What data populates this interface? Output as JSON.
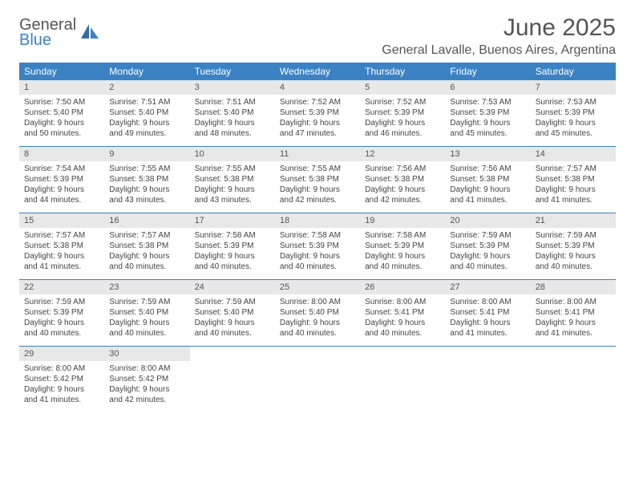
{
  "logo": {
    "line1": "General",
    "line2": "Blue"
  },
  "title": "June 2025",
  "location": "General Lavalle, Buenos Aires, Argentina",
  "colors": {
    "header_bg": "#3b82c4",
    "header_text": "#ffffff",
    "daynum_bg": "#e8e8e8",
    "text": "#444444",
    "rule": "#3b82c4"
  },
  "day_headers": [
    "Sunday",
    "Monday",
    "Tuesday",
    "Wednesday",
    "Thursday",
    "Friday",
    "Saturday"
  ],
  "weeks": [
    [
      {
        "n": "1",
        "sunrise": "Sunrise: 7:50 AM",
        "sunset": "Sunset: 5:40 PM",
        "daylight": "Daylight: 9 hours and 50 minutes."
      },
      {
        "n": "2",
        "sunrise": "Sunrise: 7:51 AM",
        "sunset": "Sunset: 5:40 PM",
        "daylight": "Daylight: 9 hours and 49 minutes."
      },
      {
        "n": "3",
        "sunrise": "Sunrise: 7:51 AM",
        "sunset": "Sunset: 5:40 PM",
        "daylight": "Daylight: 9 hours and 48 minutes."
      },
      {
        "n": "4",
        "sunrise": "Sunrise: 7:52 AM",
        "sunset": "Sunset: 5:39 PM",
        "daylight": "Daylight: 9 hours and 47 minutes."
      },
      {
        "n": "5",
        "sunrise": "Sunrise: 7:52 AM",
        "sunset": "Sunset: 5:39 PM",
        "daylight": "Daylight: 9 hours and 46 minutes."
      },
      {
        "n": "6",
        "sunrise": "Sunrise: 7:53 AM",
        "sunset": "Sunset: 5:39 PM",
        "daylight": "Daylight: 9 hours and 45 minutes."
      },
      {
        "n": "7",
        "sunrise": "Sunrise: 7:53 AM",
        "sunset": "Sunset: 5:39 PM",
        "daylight": "Daylight: 9 hours and 45 minutes."
      }
    ],
    [
      {
        "n": "8",
        "sunrise": "Sunrise: 7:54 AM",
        "sunset": "Sunset: 5:39 PM",
        "daylight": "Daylight: 9 hours and 44 minutes."
      },
      {
        "n": "9",
        "sunrise": "Sunrise: 7:55 AM",
        "sunset": "Sunset: 5:38 PM",
        "daylight": "Daylight: 9 hours and 43 minutes."
      },
      {
        "n": "10",
        "sunrise": "Sunrise: 7:55 AM",
        "sunset": "Sunset: 5:38 PM",
        "daylight": "Daylight: 9 hours and 43 minutes."
      },
      {
        "n": "11",
        "sunrise": "Sunrise: 7:55 AM",
        "sunset": "Sunset: 5:38 PM",
        "daylight": "Daylight: 9 hours and 42 minutes."
      },
      {
        "n": "12",
        "sunrise": "Sunrise: 7:56 AM",
        "sunset": "Sunset: 5:38 PM",
        "daylight": "Daylight: 9 hours and 42 minutes."
      },
      {
        "n": "13",
        "sunrise": "Sunrise: 7:56 AM",
        "sunset": "Sunset: 5:38 PM",
        "daylight": "Daylight: 9 hours and 41 minutes."
      },
      {
        "n": "14",
        "sunrise": "Sunrise: 7:57 AM",
        "sunset": "Sunset: 5:38 PM",
        "daylight": "Daylight: 9 hours and 41 minutes."
      }
    ],
    [
      {
        "n": "15",
        "sunrise": "Sunrise: 7:57 AM",
        "sunset": "Sunset: 5:38 PM",
        "daylight": "Daylight: 9 hours and 41 minutes."
      },
      {
        "n": "16",
        "sunrise": "Sunrise: 7:57 AM",
        "sunset": "Sunset: 5:38 PM",
        "daylight": "Daylight: 9 hours and 40 minutes."
      },
      {
        "n": "17",
        "sunrise": "Sunrise: 7:58 AM",
        "sunset": "Sunset: 5:39 PM",
        "daylight": "Daylight: 9 hours and 40 minutes."
      },
      {
        "n": "18",
        "sunrise": "Sunrise: 7:58 AM",
        "sunset": "Sunset: 5:39 PM",
        "daylight": "Daylight: 9 hours and 40 minutes."
      },
      {
        "n": "19",
        "sunrise": "Sunrise: 7:58 AM",
        "sunset": "Sunset: 5:39 PM",
        "daylight": "Daylight: 9 hours and 40 minutes."
      },
      {
        "n": "20",
        "sunrise": "Sunrise: 7:59 AM",
        "sunset": "Sunset: 5:39 PM",
        "daylight": "Daylight: 9 hours and 40 minutes."
      },
      {
        "n": "21",
        "sunrise": "Sunrise: 7:59 AM",
        "sunset": "Sunset: 5:39 PM",
        "daylight": "Daylight: 9 hours and 40 minutes."
      }
    ],
    [
      {
        "n": "22",
        "sunrise": "Sunrise: 7:59 AM",
        "sunset": "Sunset: 5:39 PM",
        "daylight": "Daylight: 9 hours and 40 minutes."
      },
      {
        "n": "23",
        "sunrise": "Sunrise: 7:59 AM",
        "sunset": "Sunset: 5:40 PM",
        "daylight": "Daylight: 9 hours and 40 minutes."
      },
      {
        "n": "24",
        "sunrise": "Sunrise: 7:59 AM",
        "sunset": "Sunset: 5:40 PM",
        "daylight": "Daylight: 9 hours and 40 minutes."
      },
      {
        "n": "25",
        "sunrise": "Sunrise: 8:00 AM",
        "sunset": "Sunset: 5:40 PM",
        "daylight": "Daylight: 9 hours and 40 minutes."
      },
      {
        "n": "26",
        "sunrise": "Sunrise: 8:00 AM",
        "sunset": "Sunset: 5:41 PM",
        "daylight": "Daylight: 9 hours and 40 minutes."
      },
      {
        "n": "27",
        "sunrise": "Sunrise: 8:00 AM",
        "sunset": "Sunset: 5:41 PM",
        "daylight": "Daylight: 9 hours and 41 minutes."
      },
      {
        "n": "28",
        "sunrise": "Sunrise: 8:00 AM",
        "sunset": "Sunset: 5:41 PM",
        "daylight": "Daylight: 9 hours and 41 minutes."
      }
    ],
    [
      {
        "n": "29",
        "sunrise": "Sunrise: 8:00 AM",
        "sunset": "Sunset: 5:42 PM",
        "daylight": "Daylight: 9 hours and 41 minutes."
      },
      {
        "n": "30",
        "sunrise": "Sunrise: 8:00 AM",
        "sunset": "Sunset: 5:42 PM",
        "daylight": "Daylight: 9 hours and 42 minutes."
      },
      null,
      null,
      null,
      null,
      null
    ]
  ]
}
